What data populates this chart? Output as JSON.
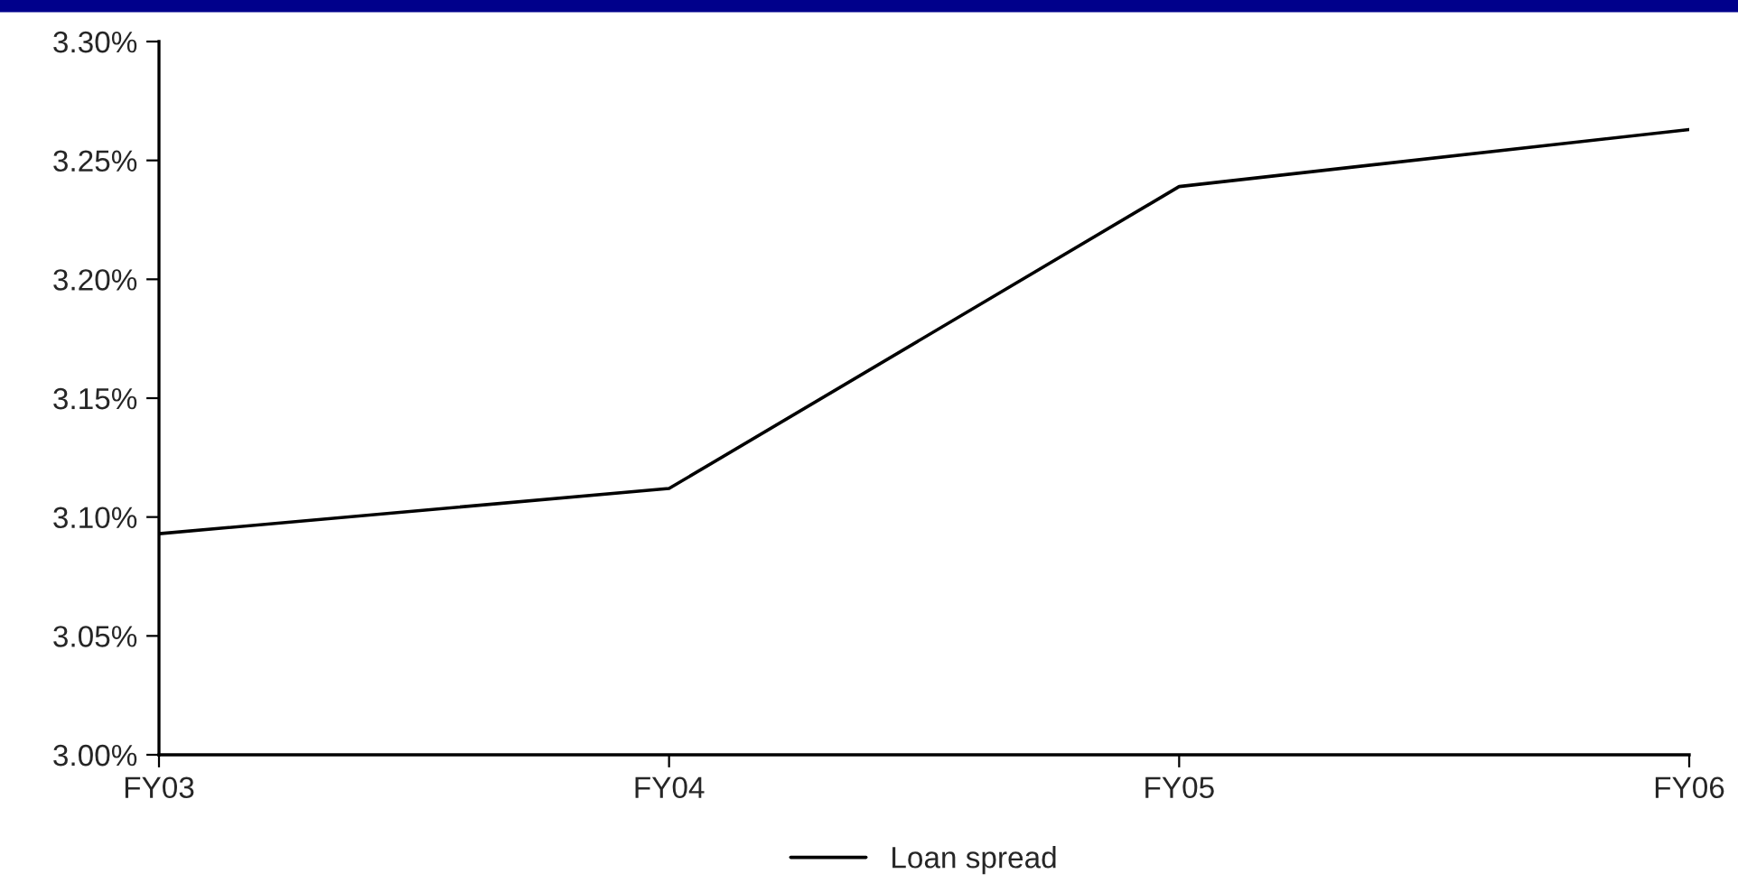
{
  "chart_data": {
    "type": "line",
    "categories": [
      "FY03",
      "FY04",
      "FY05",
      "FY06"
    ],
    "series": [
      {
        "name": "Loan spread",
        "color": "#000000",
        "values": [
          3.093,
          3.112,
          3.239,
          3.263
        ]
      }
    ],
    "ylim": [
      3.0,
      3.3
    ],
    "yticks": [
      {
        "value": 3.0,
        "label": "3.00%"
      },
      {
        "value": 3.05,
        "label": "3.05%"
      },
      {
        "value": 3.1,
        "label": "3.10%"
      },
      {
        "value": 3.15,
        "label": "3.15%"
      },
      {
        "value": 3.2,
        "label": "3.20%"
      },
      {
        "value": 3.25,
        "label": "3.25%"
      },
      {
        "value": 3.3,
        "label": "3.30%"
      }
    ],
    "grid": false,
    "legend": "bottom",
    "marker": "none",
    "line_style": "solid"
  }
}
